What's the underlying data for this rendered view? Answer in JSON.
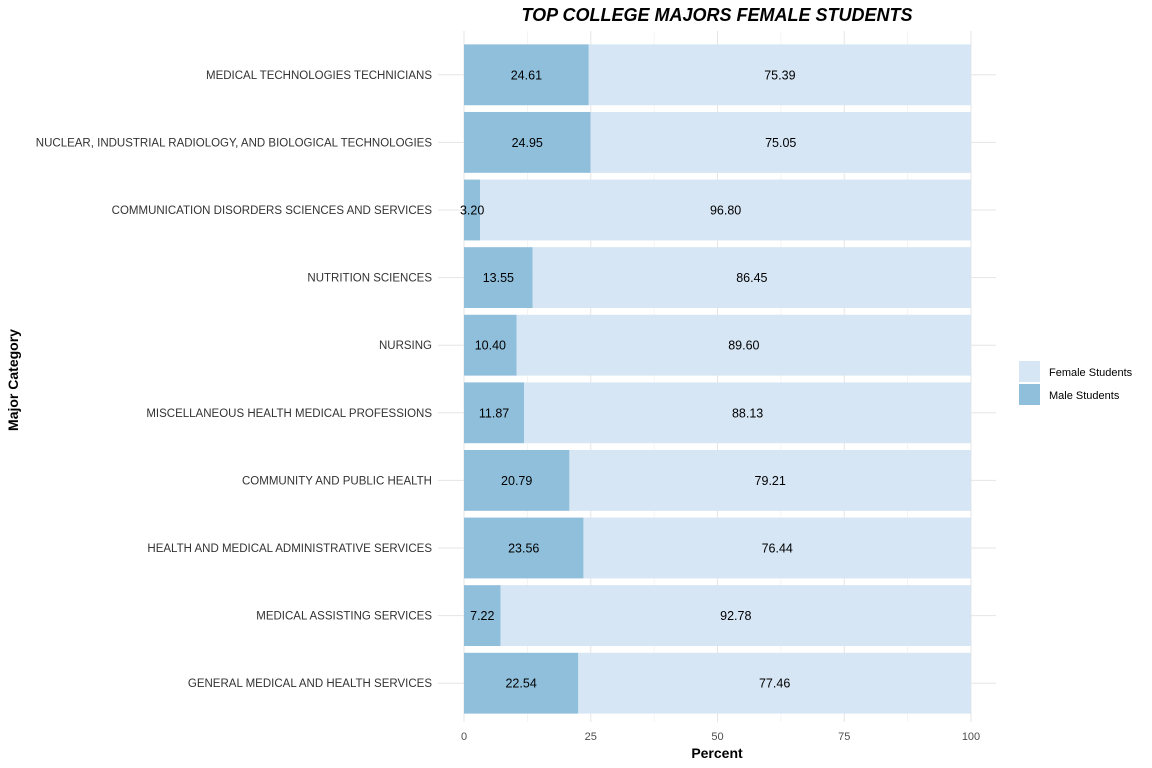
{
  "chart_data": {
    "type": "bar",
    "orientation": "horizontal",
    "stacked": true,
    "title": "TOP COLLEGE MAJORS FEMALE STUDENTS",
    "xlabel": "Percent",
    "ylabel": "Major Category",
    "xlim": [
      0,
      100
    ],
    "x_ticks": [
      0,
      25,
      50,
      75,
      100
    ],
    "grid": true,
    "legend_position": "right",
    "categories": [
      "MEDICAL TECHNOLOGIES TECHNICIANS",
      "NUCLEAR, INDUSTRIAL RADIOLOGY, AND BIOLOGICAL TECHNOLOGIES",
      "COMMUNICATION DISORDERS SCIENCES AND SERVICES",
      "NUTRITION SCIENCES",
      "NURSING",
      "MISCELLANEOUS HEALTH MEDICAL PROFESSIONS",
      "COMMUNITY AND PUBLIC HEALTH",
      "HEALTH AND MEDICAL ADMINISTRATIVE SERVICES",
      "MEDICAL ASSISTING SERVICES",
      "GENERAL MEDICAL AND HEALTH SERVICES"
    ],
    "series": [
      {
        "name": "Female Students",
        "color": "#d6e6f5",
        "values": [
          75.39,
          75.05,
          96.8,
          86.45,
          89.6,
          88.13,
          79.21,
          76.44,
          92.78,
          77.46
        ],
        "labels": [
          "75.39",
          "75.05",
          "96.80",
          "86.45",
          "89.60",
          "88.13",
          "79.21",
          "76.44",
          "92.78",
          "77.46"
        ]
      },
      {
        "name": "Male Students",
        "color": "#90bfdc",
        "values": [
          24.61,
          24.95,
          3.2,
          13.55,
          10.4,
          11.87,
          20.79,
          23.56,
          7.22,
          22.54
        ],
        "labels": [
          "24.61",
          "24.95",
          "3.20",
          "13.55",
          "10.40",
          "11.87",
          "20.79",
          "23.56",
          "7.22",
          "22.54"
        ]
      }
    ]
  }
}
